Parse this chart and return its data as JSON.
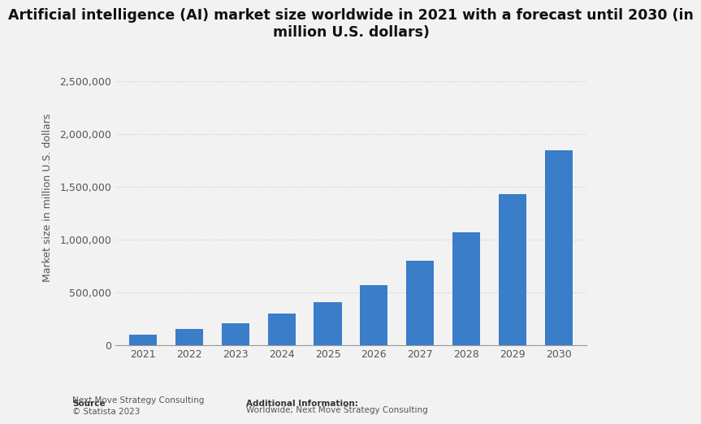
{
  "title": "Artificial intelligence (AI) market size worldwide in 2021 with a forecast until 2030 (in\nmillion U.S. dollars)",
  "years": [
    2021,
    2022,
    2023,
    2024,
    2025,
    2026,
    2027,
    2028,
    2029,
    2030
  ],
  "values": [
    93500,
    150000,
    207000,
    299000,
    407000,
    570000,
    795000,
    1065000,
    1430000,
    1847000
  ],
  "bar_color": "#3a7dc9",
  "ylabel": "Market size in million U.S. dollars",
  "ylim": [
    0,
    2800000
  ],
  "yticks": [
    0,
    500000,
    1000000,
    1500000,
    2000000,
    2500000
  ],
  "bg_color": "#f2f2f2",
  "plot_bg_color": "#f2f2f2",
  "grid_color": "#cccccc",
  "source_label": "Source",
  "source_body": "Next Move Strategy Consulting\n© Statista 2023",
  "additional_label": "Additional Information:",
  "additional_body": "Worldwide; Next Move Strategy Consulting",
  "title_fontsize": 12.5,
  "label_fontsize": 9,
  "tick_fontsize": 9
}
